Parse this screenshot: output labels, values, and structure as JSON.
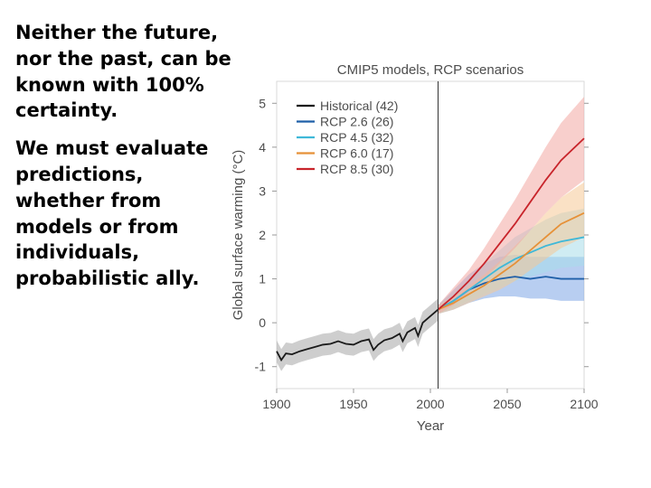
{
  "slide": {
    "paragraph1": "Neither the future, nor the past, can be known with 100% certainty.",
    "paragraph2": "We must evaluate predictions, whether from models or from individuals, probabilistic ally."
  },
  "chart_data": {
    "type": "line",
    "title": "CMIP5 models, RCP scenarios",
    "xlabel": "Year",
    "ylabel": "Global surface warming (°C)",
    "xlim": [
      1900,
      2100
    ],
    "ylim": [
      -1.5,
      5.5
    ],
    "xticks": [
      "1900",
      "1950",
      "2000",
      "2050",
      "2100"
    ],
    "yticks": [
      "-1",
      "0",
      "1",
      "2",
      "3",
      "4",
      "5"
    ],
    "vline_year": 2005,
    "series": [
      {
        "name": "Historical (42)",
        "color": "#1a1a1a",
        "band": "#a6a6a6",
        "x": [
          1900,
          1903,
          1906,
          1910,
          1915,
          1920,
          1925,
          1930,
          1935,
          1940,
          1945,
          1950,
          1955,
          1960,
          1963,
          1966,
          1970,
          1975,
          1980,
          1982,
          1985,
          1990,
          1992,
          1995,
          2000,
          2005
        ],
        "y": [
          -0.65,
          -0.85,
          -0.7,
          -0.72,
          -0.65,
          -0.6,
          -0.55,
          -0.5,
          -0.48,
          -0.42,
          -0.48,
          -0.5,
          -0.42,
          -0.38,
          -0.62,
          -0.5,
          -0.4,
          -0.35,
          -0.25,
          -0.42,
          -0.22,
          -0.12,
          -0.3,
          0.0,
          0.15,
          0.3
        ],
        "spread": 0.25
      },
      {
        "name": "RCP 2.6 (26)",
        "color": "#1f5fa8",
        "band": "#7da6e6",
        "x": [
          2005,
          2015,
          2025,
          2035,
          2045,
          2055,
          2065,
          2075,
          2085,
          2100
        ],
        "y": [
          0.3,
          0.5,
          0.75,
          0.9,
          1.0,
          1.05,
          1.0,
          1.05,
          1.0,
          1.0
        ],
        "lo": [
          0.2,
          0.3,
          0.45,
          0.55,
          0.6,
          0.6,
          0.55,
          0.55,
          0.5,
          0.5
        ],
        "hi": [
          0.4,
          0.75,
          1.1,
          1.35,
          1.5,
          1.55,
          1.5,
          1.5,
          1.5,
          1.5
        ]
      },
      {
        "name": "RCP 4.5 (32)",
        "color": "#3fb8d8",
        "band": "#a8dcea",
        "x": [
          2005,
          2015,
          2025,
          2035,
          2045,
          2055,
          2065,
          2075,
          2085,
          2100
        ],
        "y": [
          0.3,
          0.5,
          0.75,
          1.0,
          1.25,
          1.45,
          1.6,
          1.75,
          1.85,
          1.95
        ],
        "lo": [
          0.2,
          0.35,
          0.5,
          0.65,
          0.8,
          0.95,
          1.05,
          1.15,
          1.25,
          1.3
        ],
        "hi": [
          0.4,
          0.7,
          1.0,
          1.35,
          1.65,
          1.95,
          2.15,
          2.35,
          2.5,
          2.6
        ]
      },
      {
        "name": "RCP 6.0 (17)",
        "color": "#e69138",
        "band": "#f5c896",
        "x": [
          2005,
          2015,
          2025,
          2035,
          2045,
          2055,
          2065,
          2075,
          2085,
          2100
        ],
        "y": [
          0.3,
          0.45,
          0.65,
          0.85,
          1.1,
          1.35,
          1.65,
          1.95,
          2.25,
          2.5
        ],
        "lo": [
          0.2,
          0.3,
          0.45,
          0.6,
          0.75,
          0.95,
          1.2,
          1.45,
          1.7,
          1.95
        ],
        "hi": [
          0.4,
          0.6,
          0.85,
          1.1,
          1.4,
          1.75,
          2.1,
          2.5,
          2.85,
          3.2
        ]
      },
      {
        "name": "RCP 8.5 (30)",
        "color": "#c8242b",
        "band": "#f2a8a2",
        "x": [
          2005,
          2015,
          2025,
          2035,
          2045,
          2055,
          2065,
          2075,
          2085,
          2100
        ],
        "y": [
          0.3,
          0.6,
          0.95,
          1.35,
          1.8,
          2.25,
          2.75,
          3.25,
          3.7,
          4.2
        ],
        "lo": [
          0.2,
          0.4,
          0.7,
          1.0,
          1.35,
          1.7,
          2.1,
          2.5,
          2.85,
          3.25
        ],
        "hi": [
          0.4,
          0.8,
          1.2,
          1.7,
          2.25,
          2.8,
          3.4,
          4.0,
          4.55,
          5.15
        ]
      }
    ]
  }
}
